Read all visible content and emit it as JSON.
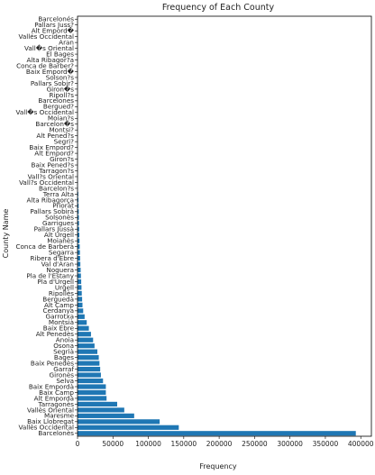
{
  "chart_data": {
    "type": "bar",
    "orientation": "horizontal",
    "title": "Frequency of Each County",
    "xlabel": "Frequency",
    "ylabel": "County Name",
    "xlim": [
      0,
      415000
    ],
    "xticks": [
      0,
      50000,
      100000,
      150000,
      200000,
      250000,
      300000,
      350000,
      400000
    ],
    "bar_color": "#1f77b4",
    "grid": false,
    "categories": [
      "Barcelonès",
      "Vallès Occidental",
      "Baix Llobregat",
      "Maresme",
      "Vallès Oriental",
      "Tarragonès",
      "Alt Empordà",
      "Baix Camp",
      "Baix Empordà",
      "Selva",
      "Gironès",
      "Garraf",
      "Baix Penedès",
      "Bages",
      "Segrià",
      "Osona",
      "Anoia",
      "Alt Penedès",
      "Baix Ebre",
      "Montsià",
      "Garrotxa",
      "Cerdanya",
      "Alt Camp",
      "Berguedà",
      "Ripollès",
      "Urgell",
      "Pla d'Urgell",
      "Pla de l'Estany",
      "Noguera",
      "Val d'Aran",
      "Ribera d'Ebre",
      "Segarra",
      "Conca de Barberà",
      "Moianès",
      "Alt Urgell",
      "Pallars Jussà",
      "Garrigues",
      "Solsonès",
      "Pallars Sobirà",
      "Priorat",
      "Alta Ribagorça",
      "Terra Alta",
      "Barcelon?s",
      "Vall?s Occidental",
      "Vall?s Oriental",
      "Tarragon?s",
      "Baix Pened?s",
      "Giron?s",
      "Alt Empord?",
      "Baix Empord?",
      "Segri?",
      "Alt Pened?s",
      "Montsi?",
      "Barcelon�s",
      "Moian?s",
      "Vall�s Occidental",
      "Bergued?",
      "Barcelones",
      "Ripoll?s",
      "Giron�s",
      "Pallars Sobir?",
      "Solson?s",
      "Baix Empord�",
      "Conca de Barber?",
      "Alta Ribagor?a",
      "El Bages",
      "Vall�s Oriental",
      "Aran",
      "Vallés Occidental",
      "Alt Empord�",
      "Pallars Juss?",
      "Barcelonés"
    ],
    "values": [
      393000,
      143000,
      116000,
      80000,
      66000,
      56000,
      41000,
      40000,
      40000,
      36000,
      33000,
      32000,
      31000,
      30000,
      28000,
      24000,
      22000,
      19000,
      16000,
      13000,
      10000,
      8000,
      7000,
      6500,
      6000,
      5600,
      5200,
      4800,
      4400,
      4000,
      3700,
      3400,
      3100,
      2800,
      2600,
      2300,
      2100,
      1900,
      1700,
      1500,
      1300,
      1100,
      400,
      300,
      250,
      200,
      180,
      160,
      140,
      120,
      100,
      90,
      80,
      70,
      60,
      50,
      45,
      40,
      35,
      30,
      25,
      20,
      18,
      15,
      12,
      10,
      8,
      6,
      5,
      4,
      3,
      2
    ]
  }
}
